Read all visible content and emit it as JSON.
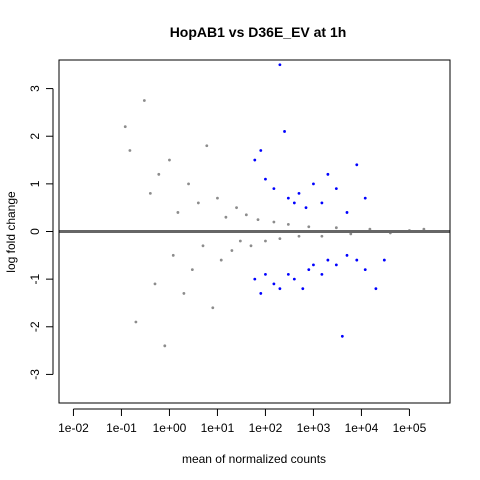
{
  "chart_data": {
    "type": "scatter",
    "title": "HopAB1 vs D36E_EV at 1h",
    "xlabel": "mean of normalized counts",
    "ylabel": "log fold change",
    "x_scale": "log10",
    "xlim": [
      0.005,
      700000
    ],
    "ylim": [
      -3.6,
      3.6
    ],
    "x_ticks": [
      0.01,
      0.1,
      1,
      10,
      100,
      1000,
      10000,
      100000
    ],
    "x_tick_labels": [
      "1e-02",
      "1e-01",
      "1e+00",
      "1e+01",
      "1e+02",
      "1e+03",
      "1e+04",
      "1e+05"
    ],
    "y_ticks": [
      -3,
      -2,
      -1,
      0,
      1,
      2,
      3
    ],
    "y_tick_labels": [
      "-3",
      "-2",
      "-1",
      "0",
      "1",
      "2",
      "3"
    ],
    "reference_line_y": 0,
    "colors": {
      "not_significant": "#8c8c8c",
      "significant": "#0000ff",
      "reference_line": "#666666"
    },
    "series": [
      {
        "points": [
          {
            "x": 0.12,
            "y": 2.2
          },
          {
            "x": 0.15,
            "y": 1.7
          },
          {
            "x": 0.2,
            "y": -1.9
          },
          {
            "x": 0.3,
            "y": 2.75
          },
          {
            "x": 0.4,
            "y": 0.8
          },
          {
            "x": 0.5,
            "y": -1.1
          },
          {
            "x": 0.6,
            "y": 1.2
          },
          {
            "x": 0.8,
            "y": -2.4
          },
          {
            "x": 1.0,
            "y": 1.5
          },
          {
            "x": 1.2,
            "y": -0.5
          },
          {
            "x": 1.5,
            "y": 0.4
          },
          {
            "x": 2.0,
            "y": -1.3
          },
          {
            "x": 2.5,
            "y": 1.0
          },
          {
            "x": 3.0,
            "y": -0.8
          },
          {
            "x": 4.0,
            "y": 0.6
          },
          {
            "x": 5.0,
            "y": -0.3
          },
          {
            "x": 6.0,
            "y": 1.8
          },
          {
            "x": 8.0,
            "y": -1.6
          },
          {
            "x": 10,
            "y": 0.7
          },
          {
            "x": 12,
            "y": -0.6
          },
          {
            "x": 15,
            "y": 0.3
          },
          {
            "x": 20,
            "y": -0.4
          },
          {
            "x": 25,
            "y": 0.5
          },
          {
            "x": 30,
            "y": -0.2
          },
          {
            "x": 40,
            "y": 0.35
          },
          {
            "x": 50,
            "y": -0.3
          },
          {
            "x": 70,
            "y": 0.25
          },
          {
            "x": 100,
            "y": -0.2
          },
          {
            "x": 150,
            "y": 0.2
          },
          {
            "x": 200,
            "y": -0.15
          },
          {
            "x": 300,
            "y": 0.15
          },
          {
            "x": 500,
            "y": -0.1
          },
          {
            "x": 800,
            "y": 0.1
          },
          {
            "x": 1500,
            "y": -0.1
          },
          {
            "x": 3000,
            "y": 0.08
          },
          {
            "x": 6000,
            "y": -0.05
          },
          {
            "x": 15000,
            "y": 0.05
          },
          {
            "x": 40000,
            "y": -0.03
          },
          {
            "x": 100000,
            "y": 0.02
          },
          {
            "x": 200000,
            "y": 0.05
          }
        ]
      },
      {
        "points": [
          {
            "x": 60,
            "y": 1.5
          },
          {
            "x": 80,
            "y": 1.7
          },
          {
            "x": 100,
            "y": 1.1
          },
          {
            "x": 150,
            "y": 0.9
          },
          {
            "x": 200,
            "y": 3.5
          },
          {
            "x": 250,
            "y": 2.1
          },
          {
            "x": 300,
            "y": 0.7
          },
          {
            "x": 400,
            "y": 0.6
          },
          {
            "x": 500,
            "y": 0.8
          },
          {
            "x": 700,
            "y": 0.5
          },
          {
            "x": 1000,
            "y": 1.0
          },
          {
            "x": 1500,
            "y": 0.6
          },
          {
            "x": 2000,
            "y": 1.2
          },
          {
            "x": 3000,
            "y": 0.9
          },
          {
            "x": 5000,
            "y": 0.4
          },
          {
            "x": 8000,
            "y": 1.4
          },
          {
            "x": 12000,
            "y": 0.7
          },
          {
            "x": 60,
            "y": -1.0
          },
          {
            "x": 80,
            "y": -1.3
          },
          {
            "x": 100,
            "y": -0.9
          },
          {
            "x": 150,
            "y": -1.1
          },
          {
            "x": 200,
            "y": -1.2
          },
          {
            "x": 300,
            "y": -0.9
          },
          {
            "x": 400,
            "y": -1.0
          },
          {
            "x": 600,
            "y": -1.2
          },
          {
            "x": 800,
            "y": -0.8
          },
          {
            "x": 1000,
            "y": -0.7
          },
          {
            "x": 1500,
            "y": -0.9
          },
          {
            "x": 2000,
            "y": -0.6
          },
          {
            "x": 3000,
            "y": -0.7
          },
          {
            "x": 5000,
            "y": -0.5
          },
          {
            "x": 8000,
            "y": -0.6
          },
          {
            "x": 12000,
            "y": -0.8
          },
          {
            "x": 4000,
            "y": -2.2
          },
          {
            "x": 20000,
            "y": -1.2
          },
          {
            "x": 30000,
            "y": -0.6
          }
        ]
      }
    ]
  }
}
